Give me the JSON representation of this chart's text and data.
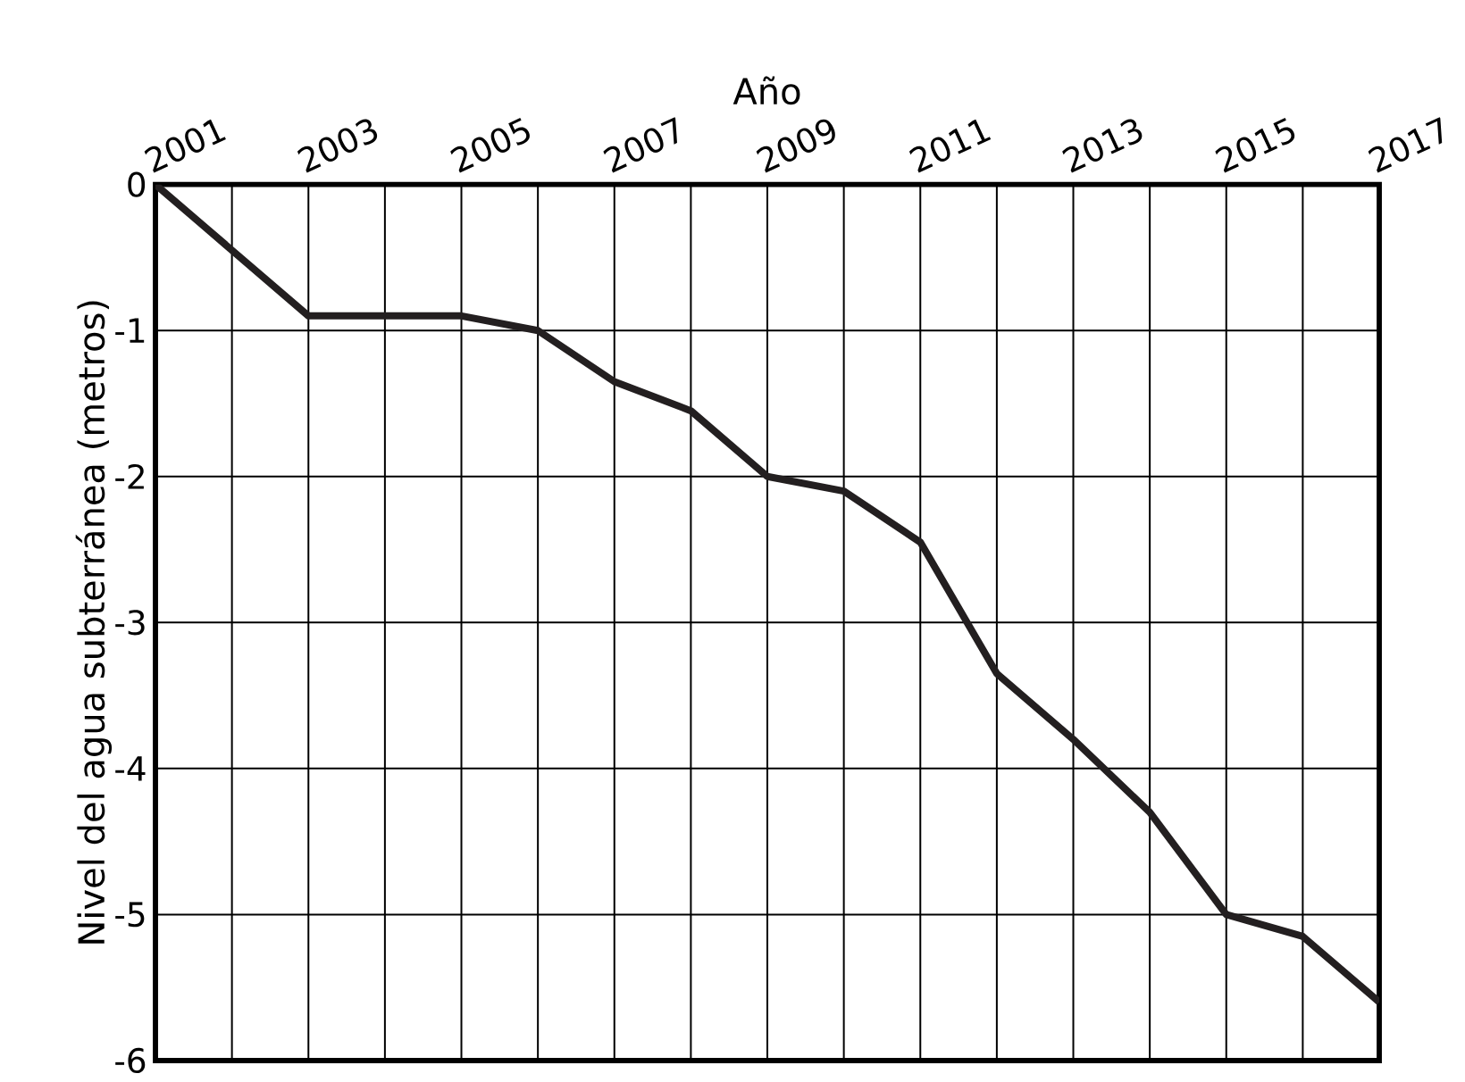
{
  "chart_data": {
    "type": "line",
    "xlabel": "Año",
    "ylabel": "Nivel del agua subterránea (metros)",
    "x": [
      2001,
      2003,
      2004,
      2005,
      2006,
      2007,
      2008,
      2009,
      2010,
      2011,
      2012,
      2013,
      2014,
      2015,
      2016,
      2017
    ],
    "series": [
      {
        "color": "#231f20",
        "values": [
          0,
          -0.9,
          -0.9,
          -0.9,
          -1.0,
          -1.35,
          -1.55,
          -2.0,
          -2.1,
          -2.45,
          -3.35,
          -3.8,
          -4.3,
          -5.0,
          -5.15,
          -5.6
        ]
      }
    ],
    "xlim": [
      2001,
      2017
    ],
    "ylim": [
      -6,
      0
    ],
    "xticks": [
      2001,
      {
        "value": 2002,
        "label": null
      },
      2003,
      {
        "value": 2004,
        "label": null
      },
      2005,
      {
        "value": 2006,
        "label": null
      },
      2007,
      {
        "value": 2008,
        "label": null
      },
      2009,
      {
        "value": 2010,
        "label": null
      },
      2011,
      {
        "value": 2012,
        "label": null
      },
      2013,
      {
        "value": 2014,
        "label": null
      },
      2015,
      {
        "value": 2016,
        "label": null
      },
      2017
    ],
    "yticks": [
      -6,
      -5,
      -4,
      -3,
      -2,
      -1,
      0
    ],
    "grid": true,
    "marker": "none",
    "line_style": "solid"
  }
}
